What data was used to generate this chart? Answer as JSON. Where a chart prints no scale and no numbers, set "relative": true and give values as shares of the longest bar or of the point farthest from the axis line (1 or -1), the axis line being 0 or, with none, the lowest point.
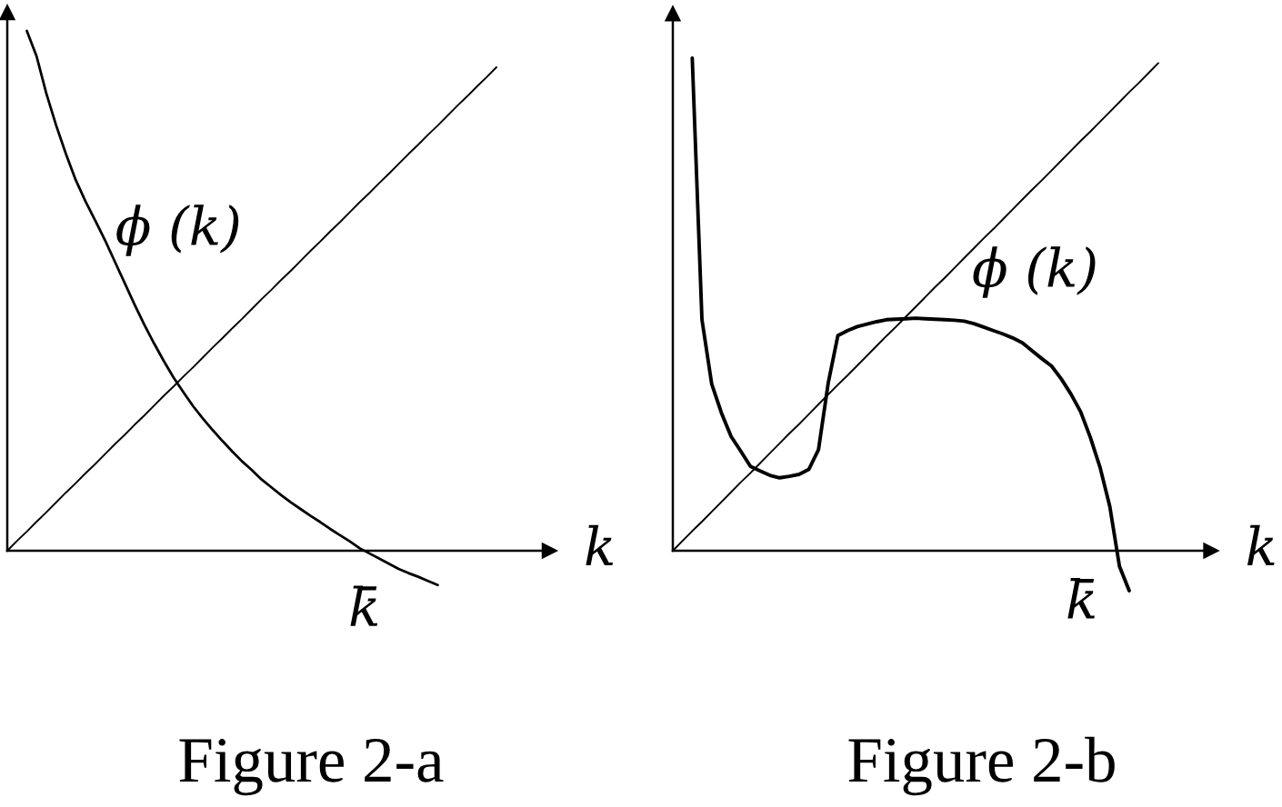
{
  "chart_data": [
    {
      "type": "line",
      "relative": true,
      "title": "Figure 2-a",
      "xlabel": "k",
      "categories": [
        null,
        null,
        null,
        null,
        null,
        null,
        null,
        null,
        null,
        null,
        null,
        null,
        null,
        null,
        null,
        null,
        null,
        null,
        null,
        null,
        null,
        null,
        null,
        null,
        null,
        null,
        null,
        null,
        null,
        null,
        null,
        null,
        null,
        null,
        null,
        null,
        null,
        null,
        null,
        null,
        null,
        null,
        null,
        null,
        null,
        null,
        null,
        null,
        null,
        null,
        null
      ],
      "series": [
        {
          "color": "#000000",
          "values": [
            0,
            0.019,
            0.037,
            0.056,
            0.074,
            0.093,
            0.112,
            0.13,
            0.149,
            0.167,
            0.186,
            0.205,
            0.223,
            0.242,
            0.26,
            0.279,
            0.298,
            0.316,
            0.335,
            0.353,
            0.372,
            0.391,
            0.409,
            0.428,
            0.446,
            0.465,
            0.484,
            0.502,
            0.521,
            0.539,
            0.558,
            0.577,
            0.595,
            0.614,
            0.632,
            0.651,
            0.67,
            0.688,
            0.707,
            0.725,
            0.744,
            0.763,
            0.781,
            0.8,
            0.818,
            0.837,
            0.856,
            0.874,
            0.893,
            0.911,
            0.93
          ]
        },
        {
          "name": "ϕ (k)",
          "color": "#000000",
          "values": [
            null,
            null,
            1.0,
            0.951,
            0.879,
            0.818,
            0.763,
            0.713,
            0.672,
            0.635,
            0.597,
            0.556,
            0.515,
            0.474,
            0.435,
            0.399,
            0.365,
            0.333,
            0.305,
            0.278,
            0.254,
            0.232,
            0.211,
            0.191,
            0.172,
            0.155,
            0.137,
            0.122,
            0.107,
            0.093,
            0.08,
            0.067,
            0.055,
            0.042,
            0.03,
            0.018,
            0.005,
            -0.005,
            -0.015,
            -0.025,
            -0.035,
            -0.043,
            -0.05,
            -0.058,
            -0.066,
            null,
            null,
            null,
            null,
            null,
            null
          ]
        }
      ],
      "annotations": [
        "k̄"
      ]
    },
    {
      "type": "line",
      "relative": true,
      "title": "Figure 2-b",
      "xlabel": "k",
      "categories": [
        null,
        null,
        null,
        null,
        null,
        null,
        null,
        null,
        null,
        null,
        null,
        null,
        null,
        null,
        null,
        null,
        null,
        null,
        null,
        null,
        null,
        null,
        null,
        null,
        null,
        null,
        null,
        null,
        null,
        null,
        null,
        null,
        null,
        null,
        null,
        null,
        null,
        null,
        null,
        null,
        null,
        null,
        null,
        null,
        null,
        null,
        null,
        null,
        null,
        null,
        null
      ],
      "series": [
        {
          "color": "#000000",
          "values": [
            0,
            0.02,
            0.04,
            0.059,
            0.079,
            0.099,
            0.119,
            0.139,
            0.158,
            0.178,
            0.198,
            0.218,
            0.238,
            0.257,
            0.277,
            0.297,
            0.317,
            0.337,
            0.356,
            0.376,
            0.396,
            0.416,
            0.436,
            0.455,
            0.475,
            0.495,
            0.515,
            0.535,
            0.554,
            0.574,
            0.594,
            0.614,
            0.634,
            0.653,
            0.673,
            0.693,
            0.713,
            0.733,
            0.752,
            0.772,
            0.792,
            0.812,
            0.832,
            0.851,
            0.871,
            0.891,
            0.911,
            0.931,
            0.95,
            0.97,
            0.99
          ]
        },
        {
          "name": "ϕ (k)",
          "color": "#000000",
          "values": [
            null,
            null,
            1.0,
            0.469,
            0.339,
            0.28,
            0.232,
            0.202,
            0.171,
            0.162,
            0.153,
            0.148,
            0.151,
            0.155,
            0.165,
            0.205,
            0.34,
            0.437,
            0.447,
            0.455,
            0.46,
            0.465,
            0.469,
            0.47,
            0.471,
            0.472,
            0.471,
            0.47,
            0.469,
            0.468,
            0.466,
            0.461,
            0.454,
            0.447,
            0.44,
            0.432,
            0.422,
            0.406,
            0.39,
            0.375,
            0.349,
            0.318,
            0.282,
            0.23,
            0.169,
            0.09,
            -0.032,
            -0.081,
            null,
            null,
            null
          ]
        }
      ],
      "annotations": [
        "k̄"
      ]
    }
  ]
}
